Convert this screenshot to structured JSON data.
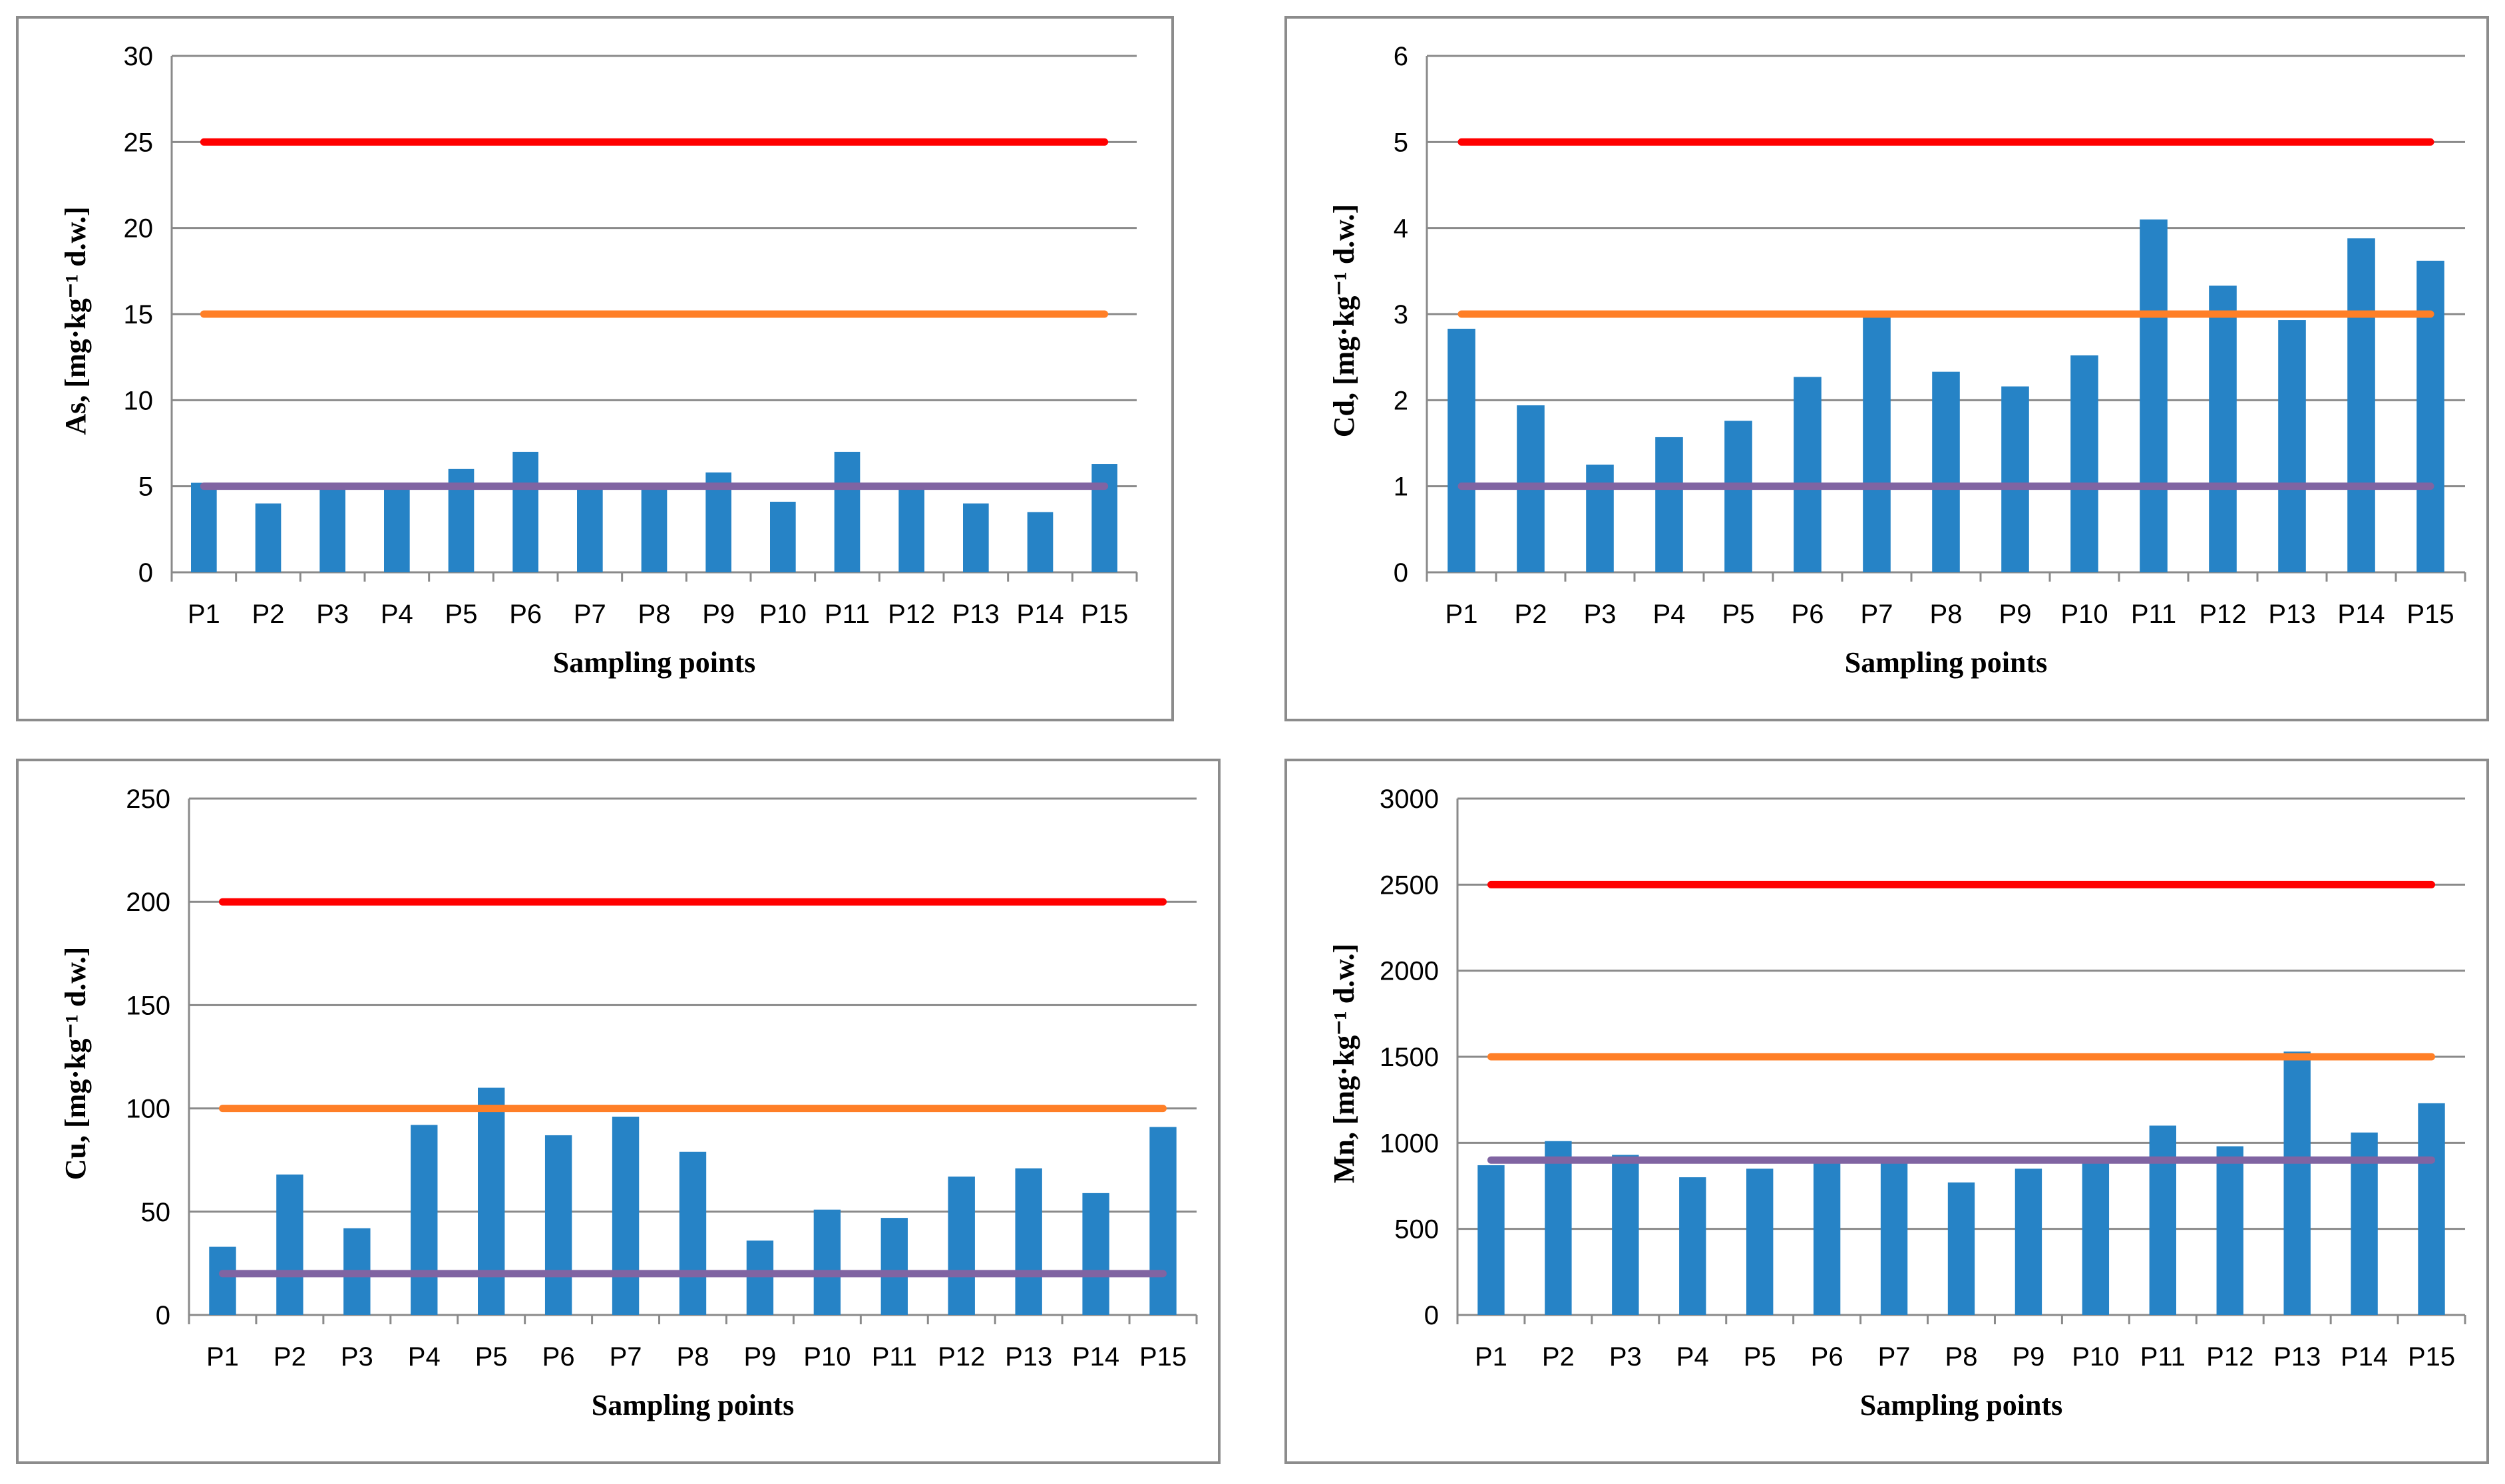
{
  "chart_data": [
    {
      "type": "bar",
      "element": "As",
      "ylabel": "As, [mg·kg⁻¹ d.w.]",
      "xlabel": "Sampling points",
      "categories": [
        "P1",
        "P2",
        "P3",
        "P4",
        "P5",
        "P6",
        "P7",
        "P8",
        "P9",
        "P10",
        "P11",
        "P12",
        "P13",
        "P14",
        "P15"
      ],
      "values": [
        5.2,
        4.0,
        5.0,
        5.0,
        6.0,
        7.0,
        5.0,
        5.0,
        5.8,
        4.1,
        7.0,
        5.0,
        4.0,
        3.5,
        6.3
      ],
      "ylim": [
        0,
        30
      ],
      "yticks": [
        0,
        5,
        10,
        15,
        20,
        25,
        30
      ],
      "reference_lines": [
        {
          "value": 25,
          "color": "#ff0000"
        },
        {
          "value": 15,
          "color": "#ff7f27"
        },
        {
          "value": 5,
          "color": "#8064a2"
        }
      ],
      "bar_color": "#2683c6"
    },
    {
      "type": "bar",
      "element": "Cd",
      "ylabel": "Cd, [mg·kg⁻¹ d.w.]",
      "xlabel": "Sampling points",
      "categories": [
        "P1",
        "P2",
        "P3",
        "P4",
        "P5",
        "P6",
        "P7",
        "P8",
        "P9",
        "P10",
        "P11",
        "P12",
        "P13",
        "P14",
        "P15"
      ],
      "values": [
        2.83,
        1.94,
        1.25,
        1.57,
        1.76,
        2.27,
        2.97,
        2.33,
        2.16,
        2.52,
        4.1,
        3.33,
        2.93,
        3.88,
        3.62
      ],
      "ylim": [
        0,
        6
      ],
      "yticks": [
        0,
        1,
        2,
        3,
        4,
        5,
        6
      ],
      "reference_lines": [
        {
          "value": 5,
          "color": "#ff0000"
        },
        {
          "value": 3,
          "color": "#ff7f27"
        },
        {
          "value": 1,
          "color": "#8064a2"
        }
      ],
      "bar_color": "#2683c6"
    },
    {
      "type": "bar",
      "element": "Cu",
      "ylabel": "Cu, [mg·kg⁻¹ d.w.]",
      "xlabel": "Sampling points",
      "categories": [
        "P1",
        "P2",
        "P3",
        "P4",
        "P5",
        "P6",
        "P7",
        "P8",
        "P9",
        "P10",
        "P11",
        "P12",
        "P13",
        "P14",
        "P15"
      ],
      "values": [
        33,
        68,
        42,
        92,
        110,
        87,
        96,
        79,
        36,
        51,
        47,
        67,
        71,
        59,
        91
      ],
      "ylim": [
        0,
        250
      ],
      "yticks": [
        0,
        50,
        100,
        150,
        200,
        250
      ],
      "reference_lines": [
        {
          "value": 200,
          "color": "#ff0000"
        },
        {
          "value": 100,
          "color": "#ff7f27"
        },
        {
          "value": 20,
          "color": "#8064a2"
        }
      ],
      "bar_color": "#2683c6"
    },
    {
      "type": "bar",
      "element": "Mn",
      "ylabel": "Mn, [mg·kg⁻¹ d.w.]",
      "xlabel": "Sampling points",
      "categories": [
        "P1",
        "P2",
        "P3",
        "P4",
        "P5",
        "P6",
        "P7",
        "P8",
        "P9",
        "P10",
        "P11",
        "P12",
        "P13",
        "P14",
        "P15"
      ],
      "values": [
        870,
        1010,
        930,
        800,
        850,
        900,
        900,
        770,
        850,
        900,
        1100,
        980,
        1530,
        1060,
        1230
      ],
      "ylim": [
        0,
        3000
      ],
      "yticks": [
        0,
        500,
        1000,
        1500,
        2000,
        2500,
        3000
      ],
      "reference_lines": [
        {
          "value": 2500,
          "color": "#ff0000"
        },
        {
          "value": 1500,
          "color": "#ff7f27"
        },
        {
          "value": 900,
          "color": "#8064a2"
        }
      ],
      "bar_color": "#2683c6"
    }
  ]
}
